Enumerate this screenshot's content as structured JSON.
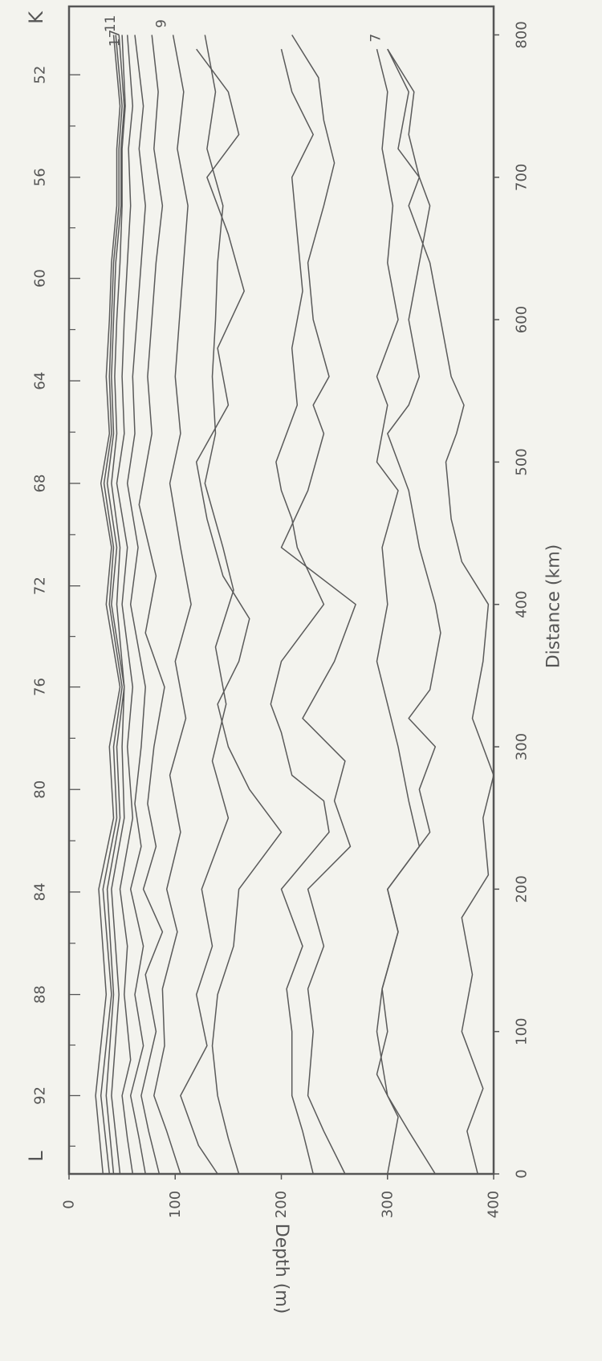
{
  "chart_data": {
    "type": "line",
    "orientation": "rotated-90-ccw",
    "xlabel": "Distance (km)",
    "ylabel": "Depth (m)",
    "xlim": [
      0,
      820
    ],
    "ylim": [
      0,
      400
    ],
    "y_inverted": true,
    "x_ticks": [
      0,
      100,
      200,
      300,
      400,
      500,
      600,
      700,
      800
    ],
    "y_ticks": [
      0,
      100,
      200,
      300,
      400
    ],
    "station_start_label": "L",
    "station_end_label": "K",
    "station_ticks": [
      {
        "label": "92",
        "x": 55
      },
      {
        "label": "88",
        "x": 126
      },
      {
        "label": "84",
        "x": 198
      },
      {
        "label": "80",
        "x": 270
      },
      {
        "label": "76",
        "x": 342
      },
      {
        "label": "72",
        "x": 413
      },
      {
        "label": "68",
        "x": 485
      },
      {
        "label": "64",
        "x": 557
      },
      {
        "label": "60",
        "x": 629
      },
      {
        "label": "56",
        "x": 700
      },
      {
        "label": "52",
        "x": 772
      }
    ],
    "grid": false,
    "legend": "none",
    "line_color": "#5a5a5a",
    "background": "#f3f3ee",
    "series": [
      {
        "name": "17",
        "x": [
          0,
          55,
          126,
          200,
          250,
          300,
          342,
          400,
          440,
          485,
          520,
          560,
          600,
          640,
          680,
          720,
          750,
          800
        ],
        "values": [
          32,
          25,
          35,
          28,
          42,
          38,
          48,
          35,
          40,
          30,
          38,
          35,
          38,
          40,
          45,
          45,
          48,
          42
        ]
      },
      {
        "name": "",
        "x": [
          0,
          55,
          126,
          200,
          250,
          300,
          342,
          400,
          440,
          485,
          520,
          560,
          600,
          640,
          680,
          720,
          750,
          800
        ],
        "values": [
          38,
          30,
          40,
          32,
          45,
          42,
          50,
          38,
          42,
          33,
          40,
          38,
          40,
          42,
          47,
          47,
          50,
          44
        ]
      },
      {
        "name": "",
        "x": [
          0,
          55,
          126,
          200,
          250,
          300,
          342,
          400,
          440,
          485,
          520,
          560,
          600,
          640,
          680,
          720,
          750,
          800
        ],
        "values": [
          42,
          35,
          42,
          36,
          48,
          45,
          52,
          40,
          45,
          36,
          42,
          40,
          42,
          44,
          49,
          49,
          52,
          47
        ]
      },
      {
        "name": "11",
        "x": [
          0,
          55,
          126,
          200,
          250,
          300,
          342,
          400,
          440,
          485,
          520,
          560,
          600,
          640,
          680,
          720,
          750,
          800
        ],
        "values": [
          48,
          40,
          47,
          40,
          52,
          50,
          52,
          45,
          48,
          40,
          45,
          43,
          45,
          48,
          50,
          50,
          53,
          50
        ]
      },
      {
        "name": "",
        "x": [
          0,
          25,
          55,
          80,
          126,
          160,
          200,
          250,
          300,
          342,
          400,
          440,
          485,
          520,
          560,
          600,
          640,
          680,
          720,
          750,
          800
        ],
        "values": [
          60,
          55,
          50,
          58,
          52,
          55,
          48,
          60,
          55,
          60,
          50,
          55,
          45,
          52,
          50,
          52,
          55,
          58,
          56,
          60,
          55
        ]
      },
      {
        "name": "",
        "x": [
          0,
          25,
          55,
          90,
          126,
          160,
          200,
          230,
          260,
          300,
          342,
          400,
          440,
          485,
          520,
          560,
          600,
          640,
          680,
          720,
          750,
          800
        ],
        "values": [
          72,
          66,
          58,
          70,
          62,
          70,
          58,
          68,
          62,
          68,
          72,
          58,
          65,
          55,
          62,
          60,
          64,
          68,
          72,
          66,
          70,
          62
        ]
      },
      {
        "name": "",
        "x": [
          0,
          30,
          55,
          100,
          140,
          170,
          200,
          230,
          260,
          300,
          342,
          380,
          420,
          470,
          520,
          560,
          600,
          640,
          680,
          720,
          760,
          800
        ],
        "values": [
          85,
          75,
          68,
          82,
          72,
          88,
          70,
          82,
          74,
          80,
          90,
          72,
          82,
          66,
          78,
          74,
          78,
          82,
          88,
          80,
          84,
          78
        ]
      },
      {
        "name": "9",
        "x": [
          0,
          30,
          55,
          90,
          130,
          170,
          200,
          240,
          280,
          320,
          360,
          400,
          440,
          485,
          520,
          560,
          600,
          640,
          680,
          720,
          760,
          800
        ],
        "values": [
          105,
          92,
          80,
          90,
          88,
          102,
          92,
          105,
          95,
          110,
          100,
          115,
          105,
          95,
          105,
          100,
          104,
          108,
          112,
          102,
          108,
          98
        ]
      },
      {
        "name": "",
        "x": [
          0,
          20,
          55,
          90,
          126,
          160,
          200,
          250,
          290,
          330,
          370,
          410,
          440,
          485,
          520,
          560,
          600,
          640,
          680,
          720,
          760,
          800
        ],
        "values": [
          140,
          122,
          105,
          130,
          120,
          135,
          125,
          150,
          135,
          148,
          138,
          155,
          145,
          128,
          138,
          135,
          138,
          140,
          145,
          130,
          138,
          128
        ]
      },
      {
        "name": "",
        "x": [
          0,
          25,
          55,
          90,
          126,
          160,
          200,
          240,
          270,
          300,
          330,
          360,
          390,
          420,
          460,
          500,
          540,
          580,
          620,
          660,
          700,
          730,
          760,
          790
        ],
        "values": [
          160,
          150,
          140,
          135,
          140,
          155,
          160,
          200,
          170,
          150,
          140,
          160,
          170,
          145,
          130,
          120,
          150,
          140,
          165,
          150,
          130,
          160,
          150,
          120
        ]
      },
      {
        "name": "",
        "x": [
          0,
          30,
          55,
          100,
          130,
          160,
          200,
          240,
          262,
          280,
          310,
          330,
          360,
          400,
          440,
          460,
          480,
          500,
          540,
          580,
          620,
          660,
          700,
          730,
          760,
          790
        ],
        "values": [
          230,
          220,
          210,
          210,
          205,
          220,
          200,
          245,
          240,
          210,
          200,
          190,
          200,
          240,
          215,
          210,
          200,
          195,
          215,
          210,
          220,
          215,
          210,
          230,
          210,
          200
        ]
      },
      {
        "name": "",
        "x": [
          0,
          30,
          55,
          100,
          130,
          160,
          200,
          230,
          262,
          290,
          320,
          360,
          400,
          440,
          480,
          520,
          540,
          560,
          600,
          640,
          680,
          710,
          740,
          770,
          800
        ],
        "values": [
          260,
          240,
          225,
          230,
          225,
          240,
          225,
          265,
          250,
          260,
          220,
          250,
          270,
          200,
          225,
          240,
          230,
          245,
          230,
          225,
          240,
          250,
          240,
          235,
          210
        ]
      },
      {
        "name": "",
        "x": [
          0,
          40,
          70,
          100,
          130,
          170,
          200,
          230,
          262,
          300,
          330,
          360,
          400,
          440,
          480,
          500,
          540,
          560,
          600,
          640,
          680,
          720,
          760,
          790
        ],
        "values": [
          300,
          310,
          290,
          300,
          295,
          310,
          300,
          330,
          320,
          310,
          300,
          290,
          300,
          295,
          310,
          290,
          300,
          290,
          310,
          300,
          305,
          295,
          300,
          290
        ]
      },
      {
        "name": "7",
        "x": [
          0,
          30,
          55,
          100,
          130,
          170,
          200,
          240,
          270,
          300,
          320,
          340,
          380,
          400,
          440,
          480,
          500,
          520,
          540,
          560,
          600,
          640,
          680,
          700,
          730,
          760,
          790
        ],
        "values": [
          345,
          320,
          300,
          290,
          295,
          310,
          300,
          340,
          330,
          345,
          320,
          340,
          350,
          345,
          330,
          320,
          310,
          300,
          320,
          330,
          320,
          330,
          340,
          330,
          320,
          325,
          300
        ]
      },
      {
        "name": "",
        "x": [
          0,
          30,
          60,
          100,
          140,
          180,
          210,
          250,
          280,
          320,
          360,
          400,
          430,
          460,
          500,
          520,
          540,
          560,
          600,
          640,
          680,
          700,
          720,
          760,
          790
        ],
        "values": [
          385,
          375,
          390,
          370,
          380,
          370,
          395,
          390,
          400,
          380,
          390,
          395,
          370,
          360,
          355,
          365,
          372,
          360,
          350,
          340,
          320,
          330,
          310,
          320,
          300
        ]
      }
    ]
  }
}
